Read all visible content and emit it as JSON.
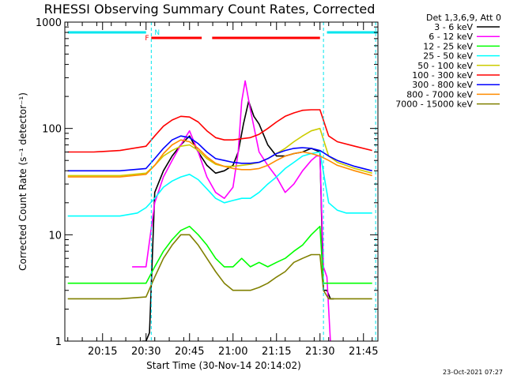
{
  "chart_data": {
    "type": "line",
    "title": "RHESSI Observing Summary Count Rates, Corrected",
    "xlabel": "Start Time (30-Nov-14 20:14:02)",
    "ylabel": "Corrected Count Rate (s⁻¹ detector⁻¹)",
    "ylog": true,
    "ylim": [
      1,
      1000
    ],
    "y_ticks": [
      "1",
      "10",
      "100",
      "1000"
    ],
    "xlim_minutes": [
      20.033,
      21.833
    ],
    "x_tick_labels": [
      "20:15",
      "20:30",
      "20:45",
      "21:00",
      "21:15",
      "21:30",
      "21:45"
    ],
    "x_tick_values_h": [
      20.25,
      20.5,
      20.75,
      21.0,
      21.25,
      21.5,
      21.75
    ],
    "legend_header": "Det 1,3,6,9, Att 0",
    "legend_position": "right",
    "footer": "23-Oct-2021 07:27",
    "flags": {
      "n_label": "N",
      "f_label": "F",
      "n_color": "#00e5ee",
      "f_color": "#ff0000",
      "night_intervals": [
        [
          20.05,
          20.5
        ],
        [
          21.54,
          21.83
        ]
      ],
      "flare_intervals": [
        [
          20.53,
          20.82
        ],
        [
          20.88,
          21.5
        ]
      ],
      "dashed_lines": [
        20.53,
        21.52,
        21.82
      ]
    },
    "series": [
      {
        "name": "3 - 6 keV",
        "color": "#000000",
        "x": [
          20.05,
          20.15,
          20.25,
          20.35,
          20.45,
          20.48,
          20.5,
          20.52,
          20.55,
          20.6,
          20.65,
          20.7,
          20.75,
          20.8,
          20.85,
          20.9,
          20.95,
          21.0,
          21.03,
          21.06,
          21.09,
          21.12,
          21.15,
          21.2,
          21.25,
          21.3,
          21.35,
          21.4,
          21.45,
          21.5,
          21.52,
          21.54,
          21.56,
          21.58,
          21.6
        ],
        "y": [
          null,
          null,
          null,
          null,
          null,
          1,
          1,
          1.2,
          25,
          40,
          55,
          70,
          85,
          60,
          45,
          38,
          40,
          45,
          60,
          110,
          180,
          130,
          110,
          70,
          55,
          55,
          58,
          60,
          65,
          60,
          3,
          3,
          2.5,
          2.5,
          null
        ]
      },
      {
        "name": "6 - 12 keV",
        "color": "#ff00ff",
        "x": [
          20.42,
          20.45,
          20.5,
          20.55,
          20.6,
          20.65,
          20.7,
          20.75,
          20.8,
          20.85,
          20.9,
          20.95,
          21.0,
          21.03,
          21.05,
          21.07,
          21.1,
          21.15,
          21.2,
          21.25,
          21.3,
          21.35,
          21.4,
          21.45,
          21.48,
          21.5,
          21.52,
          21.54,
          21.56
        ],
        "y": [
          5,
          5,
          5,
          20,
          35,
          50,
          70,
          95,
          60,
          35,
          25,
          22,
          28,
          60,
          180,
          280,
          150,
          60,
          45,
          35,
          25,
          30,
          40,
          50,
          55,
          55,
          5,
          4,
          1
        ]
      },
      {
        "name": "12 - 25 keV",
        "color": "#00ff00",
        "x": [
          20.05,
          20.2,
          20.35,
          20.5,
          20.55,
          20.6,
          20.65,
          20.7,
          20.75,
          20.8,
          20.85,
          20.9,
          20.95,
          21.0,
          21.05,
          21.1,
          21.15,
          21.2,
          21.25,
          21.3,
          21.35,
          21.4,
          21.45,
          21.5,
          21.52,
          21.55,
          21.6,
          21.7,
          21.8
        ],
        "y": [
          3.5,
          3.5,
          3.5,
          3.5,
          5,
          7,
          9,
          11,
          12,
          10,
          8,
          6,
          5,
          5,
          6,
          5,
          5.5,
          5,
          5.5,
          6,
          7,
          8,
          10,
          12,
          3.5,
          3.5,
          3.5,
          3.5,
          3.5
        ]
      },
      {
        "name": "25 - 50 keV",
        "color": "#00ffff",
        "x": [
          20.05,
          20.15,
          20.25,
          20.35,
          20.45,
          20.5,
          20.55,
          20.6,
          20.65,
          20.7,
          20.75,
          20.8,
          20.85,
          20.9,
          20.95,
          21.0,
          21.05,
          21.1,
          21.15,
          21.2,
          21.25,
          21.3,
          21.35,
          21.4,
          21.45,
          21.5,
          21.55,
          21.6,
          21.65,
          21.7,
          21.8
        ],
        "y": [
          15,
          15,
          15,
          15,
          16,
          18,
          22,
          28,
          32,
          35,
          37,
          33,
          27,
          22,
          20,
          21,
          22,
          22,
          25,
          30,
          35,
          42,
          48,
          55,
          58,
          60,
          20,
          17,
          16,
          16,
          16
        ]
      },
      {
        "name": "50 - 100 keV",
        "color": "#cccc00",
        "x": [
          20.05,
          20.2,
          20.35,
          20.5,
          20.55,
          20.6,
          20.65,
          20.7,
          20.75,
          20.8,
          20.85,
          20.9,
          20.95,
          21.0,
          21.05,
          21.1,
          21.15,
          21.2,
          21.25,
          21.3,
          21.35,
          21.4,
          21.45,
          21.5,
          21.55,
          21.6,
          21.7,
          21.8
        ],
        "y": [
          36,
          36,
          36,
          38,
          45,
          55,
          62,
          68,
          70,
          62,
          52,
          46,
          44,
          44,
          45,
          46,
          48,
          52,
          58,
          65,
          75,
          85,
          95,
          100,
          55,
          48,
          42,
          38
        ]
      },
      {
        "name": "100 - 300 keV",
        "color": "#ff0000",
        "x": [
          20.05,
          20.2,
          20.35,
          20.5,
          20.55,
          20.6,
          20.65,
          20.7,
          20.75,
          20.8,
          20.85,
          20.9,
          20.95,
          21.0,
          21.05,
          21.1,
          21.15,
          21.2,
          21.25,
          21.3,
          21.35,
          21.4,
          21.45,
          21.5,
          21.55,
          21.6,
          21.7,
          21.8
        ],
        "y": [
          60,
          60,
          62,
          68,
          85,
          105,
          120,
          130,
          128,
          115,
          95,
          82,
          78,
          78,
          80,
          82,
          88,
          100,
          115,
          130,
          140,
          148,
          150,
          150,
          85,
          75,
          68,
          62
        ]
      },
      {
        "name": "300 - 800 keV",
        "color": "#0000ff",
        "x": [
          20.05,
          20.2,
          20.35,
          20.5,
          20.55,
          20.6,
          20.65,
          20.7,
          20.75,
          20.8,
          20.85,
          20.9,
          20.95,
          21.0,
          21.05,
          21.1,
          21.15,
          21.2,
          21.25,
          21.3,
          21.35,
          21.4,
          21.45,
          21.5,
          21.55,
          21.6,
          21.7,
          21.8
        ],
        "y": [
          40,
          40,
          40,
          42,
          52,
          65,
          78,
          85,
          82,
          72,
          60,
          52,
          50,
          48,
          47,
          47,
          48,
          52,
          58,
          62,
          65,
          66,
          65,
          62,
          55,
          50,
          44,
          40
        ]
      },
      {
        "name": "800 - 7000 keV",
        "color": "#ff8c00",
        "x": [
          20.05,
          20.2,
          20.35,
          20.5,
          20.55,
          20.6,
          20.65,
          20.7,
          20.75,
          20.8,
          20.85,
          20.9,
          20.95,
          21.0,
          21.05,
          21.1,
          21.15,
          21.2,
          21.25,
          21.3,
          21.35,
          21.4,
          21.45,
          21.5,
          21.55,
          21.6,
          21.7,
          21.8
        ],
        "y": [
          35,
          35,
          35,
          37,
          45,
          58,
          70,
          78,
          75,
          65,
          54,
          47,
          44,
          42,
          41,
          41,
          42,
          45,
          50,
          55,
          58,
          60,
          58,
          55,
          50,
          45,
          40,
          36
        ]
      },
      {
        "name": "7000 - 15000 keV",
        "color": "#808000",
        "x": [
          20.05,
          20.2,
          20.35,
          20.5,
          20.55,
          20.6,
          20.65,
          20.7,
          20.75,
          20.8,
          20.85,
          20.9,
          20.95,
          21.0,
          21.05,
          21.1,
          21.15,
          21.2,
          21.25,
          21.3,
          21.35,
          21.4,
          21.45,
          21.5,
          21.52,
          21.55,
          21.6,
          21.7,
          21.8
        ],
        "y": [
          2.5,
          2.5,
          2.5,
          2.6,
          4,
          6,
          8,
          10,
          10,
          8,
          6,
          4.5,
          3.5,
          3,
          3,
          3,
          3.2,
          3.5,
          4,
          4.5,
          5.5,
          6,
          6.5,
          6.5,
          3,
          2.5,
          2.5,
          2.5,
          2.5
        ]
      }
    ]
  }
}
